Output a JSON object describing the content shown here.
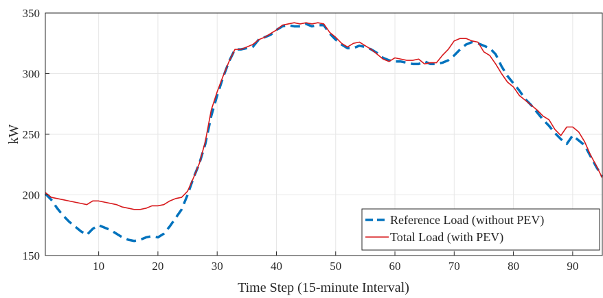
{
  "chart_data": {
    "type": "line",
    "title": "",
    "xlabel": "Time Step (15-minute Interval)",
    "ylabel": "kW",
    "xlim": [
      1,
      95
    ],
    "ylim": [
      150,
      350
    ],
    "xticks": [
      10,
      20,
      30,
      40,
      50,
      60,
      70,
      80,
      90
    ],
    "yticks": [
      150,
      200,
      250,
      300,
      350
    ],
    "grid": true,
    "legend_position": "bottom-right",
    "series": [
      {
        "name": "Reference Load (without PEV)",
        "color": "#0072BD",
        "style": "dashed",
        "x": [
          1,
          2,
          3,
          4,
          5,
          6,
          7,
          8,
          9,
          10,
          11,
          12,
          13,
          14,
          15,
          16,
          17,
          18,
          19,
          20,
          21,
          22,
          23,
          24,
          25,
          26,
          27,
          28,
          29,
          30,
          31,
          32,
          33,
          34,
          35,
          36,
          37,
          38,
          39,
          40,
          41,
          42,
          43,
          44,
          45,
          46,
          47,
          48,
          49,
          50,
          51,
          52,
          53,
          54,
          55,
          56,
          57,
          58,
          59,
          60,
          61,
          62,
          63,
          64,
          65,
          66,
          67,
          68,
          69,
          70,
          71,
          72,
          73,
          74,
          75,
          76,
          77,
          78,
          79,
          80,
          81,
          82,
          83,
          84,
          85,
          86,
          87,
          88,
          89,
          90,
          91,
          92,
          93,
          94,
          95
        ],
        "values": [
          201,
          196,
          189,
          183,
          178,
          174,
          170,
          167,
          172,
          175,
          173,
          171,
          168,
          165,
          163,
          162,
          163,
          165,
          166,
          165,
          168,
          174,
          181,
          188,
          200,
          214,
          226,
          242,
          265,
          282,
          297,
          310,
          320,
          320,
          321,
          322,
          328,
          330,
          332,
          336,
          339,
          340,
          339,
          339,
          341,
          339,
          340,
          340,
          333,
          328,
          324,
          321,
          321,
          323,
          322,
          320,
          317,
          313,
          311,
          310,
          310,
          309,
          308,
          308,
          310,
          308,
          308,
          309,
          311,
          315,
          320,
          324,
          326,
          325,
          323,
          321,
          316,
          306,
          298,
          292,
          286,
          279,
          274,
          268,
          262,
          257,
          251,
          246,
          242,
          249,
          245,
          241,
          232,
          223,
          215
        ]
      },
      {
        "name": "Total Load (with PEV)",
        "color": "#D7191C",
        "style": "solid",
        "x": [
          1,
          2,
          3,
          4,
          5,
          6,
          7,
          8,
          9,
          10,
          11,
          12,
          13,
          14,
          15,
          16,
          17,
          18,
          19,
          20,
          21,
          22,
          23,
          24,
          25,
          26,
          27,
          28,
          29,
          30,
          31,
          32,
          33,
          34,
          35,
          36,
          37,
          38,
          39,
          40,
          41,
          42,
          43,
          44,
          45,
          46,
          47,
          48,
          49,
          50,
          51,
          52,
          53,
          54,
          55,
          56,
          57,
          58,
          59,
          60,
          61,
          62,
          63,
          64,
          65,
          66,
          67,
          68,
          69,
          70,
          71,
          72,
          73,
          74,
          75,
          76,
          77,
          78,
          79,
          80,
          81,
          82,
          83,
          84,
          85,
          86,
          87,
          88,
          89,
          90,
          91,
          92,
          93,
          94,
          95
        ],
        "values": [
          202,
          198,
          197,
          196,
          195,
          194,
          193,
          192,
          195,
          195,
          194,
          193,
          192,
          190,
          189,
          188,
          188,
          189,
          191,
          191,
          192,
          195,
          197,
          198,
          203,
          214,
          226,
          244,
          270,
          285,
          298,
          310,
          320,
          320,
          322,
          324,
          328,
          330,
          333,
          336,
          340,
          341,
          342,
          341,
          342,
          341,
          342,
          341,
          334,
          330,
          325,
          322,
          325,
          326,
          323,
          320,
          316,
          312,
          310,
          313,
          312,
          311,
          311,
          312,
          308,
          309,
          309,
          315,
          320,
          327,
          329,
          329,
          327,
          326,
          318,
          315,
          308,
          300,
          293,
          289,
          282,
          278,
          274,
          270,
          265,
          262,
          254,
          249,
          256,
          256,
          252,
          244,
          233,
          224,
          214
        ]
      }
    ]
  }
}
